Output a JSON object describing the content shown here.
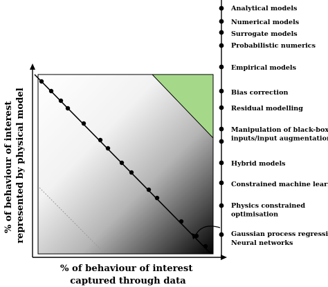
{
  "diagram": {
    "x_axis_title": [
      "% of behaviour of interest",
      "captured through data"
    ],
    "y_axis_title": [
      "% of behaviour of interest",
      "represented by physical model"
    ],
    "models": [
      {
        "id": "analytical",
        "lines": [
          "Analytical models"
        ]
      },
      {
        "id": "numerical",
        "lines": [
          "Numerical models"
        ]
      },
      {
        "id": "surrogate",
        "lines": [
          "Surrogate models"
        ]
      },
      {
        "id": "probabilistic",
        "lines": [
          "Probabilistic numerics"
        ]
      },
      {
        "id": "empirical",
        "lines": [
          "Empirical models"
        ]
      },
      {
        "id": "bias",
        "lines": [
          "Bias correction"
        ]
      },
      {
        "id": "residual",
        "lines": [
          "Residual modelling"
        ]
      },
      {
        "id": "manipulation",
        "lines": [
          "Manipulation of black-box",
          "inputs/input augmentation"
        ]
      },
      {
        "id": "hybrid",
        "lines": [
          "Hybrid models"
        ]
      },
      {
        "id": "constrained-ml",
        "lines": [
          "Constrained machine learners"
        ]
      },
      {
        "id": "physics-constrained",
        "lines": [
          "Physics constrained",
          "optimisation"
        ]
      },
      {
        "id": "gp-regression",
        "lines": [
          "Gaussian process regression"
        ]
      },
      {
        "id": "neural",
        "lines": [
          "Neural networks"
        ]
      }
    ],
    "colors": {
      "green_region": "#a6d88a",
      "gradient_light": "#ffffff",
      "gradient_dark": "#000000",
      "dotted_line": "#9a9a9a"
    }
  }
}
